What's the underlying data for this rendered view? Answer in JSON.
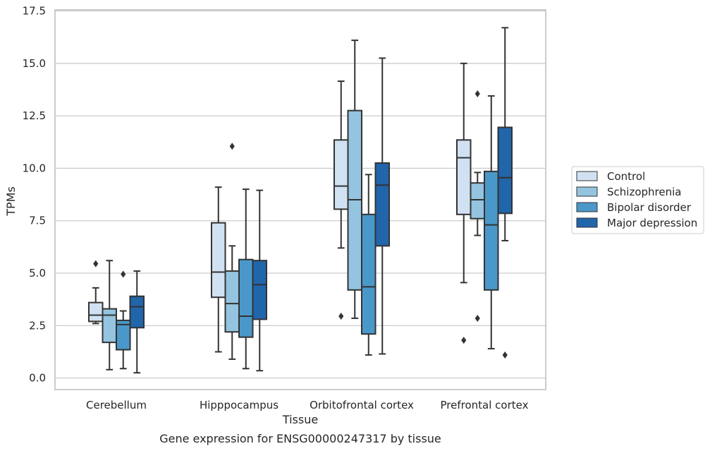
{
  "chart_data": {
    "type": "box",
    "title": "",
    "caption": "Gene expression for ENSG00000247317 by tissue",
    "xlabel": "Tissue",
    "ylabel": "TPMs",
    "ylim": [
      -0.55,
      17.55
    ],
    "yticks": [
      0.0,
      2.5,
      5.0,
      7.5,
      10.0,
      12.5,
      15.0,
      17.5
    ],
    "ytick_labels": [
      "0.0",
      "2.5",
      "5.0",
      "7.5",
      "10.0",
      "12.5",
      "15.0",
      "17.5"
    ],
    "grid": "horizontal",
    "legend_position": "right",
    "categories": [
      "Cerebellum",
      "Hipppocampus",
      "Orbitofrontal cortex",
      "Prefrontal cortex"
    ],
    "series": [
      {
        "name": "Control",
        "color": "#d0e1f2",
        "boxes": [
          {
            "whisker_low": 2.6,
            "q1": 2.7,
            "median": 3.0,
            "q3": 3.6,
            "whisker_high": 4.3,
            "outliers": [
              5.45
            ]
          },
          {
            "whisker_low": 1.25,
            "q1": 3.85,
            "median": 5.05,
            "q3": 7.4,
            "whisker_high": 9.1,
            "outliers": []
          },
          {
            "whisker_low": 6.2,
            "q1": 8.05,
            "median": 9.15,
            "q3": 11.35,
            "whisker_high": 14.15,
            "outliers": [
              2.95
            ]
          },
          {
            "whisker_low": 4.55,
            "q1": 7.8,
            "median": 10.5,
            "q3": 11.35,
            "whisker_high": 15.0,
            "outliers": [
              1.8
            ]
          }
        ]
      },
      {
        "name": "Schizophrenia",
        "color": "#94c4df",
        "boxes": [
          {
            "whisker_low": 0.4,
            "q1": 1.7,
            "median": 3.0,
            "q3": 3.3,
            "whisker_high": 5.6,
            "outliers": []
          },
          {
            "whisker_low": 0.9,
            "q1": 2.2,
            "median": 3.55,
            "q3": 5.1,
            "whisker_high": 6.3,
            "outliers": [
              11.05
            ]
          },
          {
            "whisker_low": 2.85,
            "q1": 4.2,
            "median": 8.5,
            "q3": 12.75,
            "whisker_high": 16.1,
            "outliers": []
          },
          {
            "whisker_low": 6.8,
            "q1": 7.6,
            "median": 8.5,
            "q3": 9.3,
            "whisker_high": 9.8,
            "outliers": [
              2.85,
              13.55
            ]
          }
        ]
      },
      {
        "name": "Bipolar disorder",
        "color": "#4a98c9",
        "boxes": [
          {
            "whisker_low": 0.45,
            "q1": 1.35,
            "median": 2.55,
            "q3": 2.75,
            "whisker_high": 3.2,
            "outliers": [
              4.95
            ]
          },
          {
            "whisker_low": 0.45,
            "q1": 1.95,
            "median": 2.95,
            "q3": 5.65,
            "whisker_high": 9.0,
            "outliers": []
          },
          {
            "whisker_low": 1.1,
            "q1": 2.1,
            "median": 4.35,
            "q3": 7.8,
            "whisker_high": 9.7,
            "outliers": []
          },
          {
            "whisker_low": 1.4,
            "q1": 4.2,
            "median": 7.3,
            "q3": 9.85,
            "whisker_high": 13.45,
            "outliers": []
          }
        ]
      },
      {
        "name": "Major depression",
        "color": "#2165ab",
        "boxes": [
          {
            "whisker_low": 0.25,
            "q1": 2.4,
            "median": 3.4,
            "q3": 3.9,
            "whisker_high": 5.1,
            "outliers": []
          },
          {
            "whisker_low": 0.35,
            "q1": 2.8,
            "median": 4.45,
            "q3": 5.6,
            "whisker_high": 8.95,
            "outliers": []
          },
          {
            "whisker_low": 1.15,
            "q1": 6.3,
            "median": 9.2,
            "q3": 10.25,
            "whisker_high": 15.25,
            "outliers": []
          },
          {
            "whisker_low": 6.55,
            "q1": 7.85,
            "median": 9.55,
            "q3": 11.95,
            "whisker_high": 16.7,
            "outliers": [
              1.1
            ]
          }
        ]
      }
    ]
  }
}
